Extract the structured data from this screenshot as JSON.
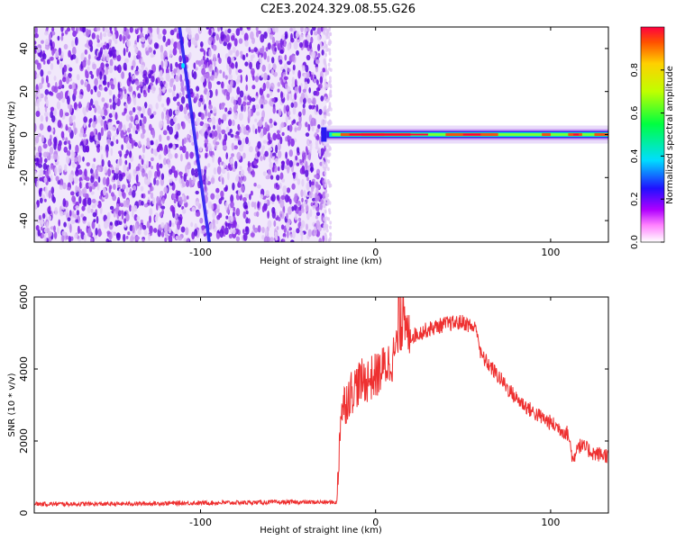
{
  "title": "C2E3.2024.329.08.55.G26",
  "colors": {
    "signal": "#ee3030",
    "trace": "#2a1cf0",
    "frame": "#000000"
  },
  "chart_data": [
    {
      "type": "heatmap",
      "xlabel": "Height of straight line (km)",
      "ylabel": "Frequency (Hz)",
      "xlim": [
        -195,
        133
      ],
      "ylim": [
        -50,
        50
      ],
      "x_ticks": [
        "-100",
        "0",
        "100"
      ],
      "y_ticks": [
        "-40",
        "-20",
        "0",
        "20",
        "40"
      ],
      "colorbar": {
        "label": "Normalized spectral amplitude",
        "range": [
          0,
          1
        ],
        "ticks": [
          "0.0",
          "0.2",
          "0.4",
          "0.6",
          "0.8"
        ]
      },
      "noise_region_x": [
        -195,
        -28
      ],
      "carrier_frequency": 0,
      "carrier_start_x": -28,
      "sweep_trace": {
        "start": [
          -112,
          50
        ],
        "end": [
          -95,
          -50
        ]
      }
    },
    {
      "type": "line",
      "xlabel": "Height of straight line (km)",
      "ylabel": "SNR (10 * v/v)",
      "xlim": [
        -195,
        133
      ],
      "ylim": [
        0,
        6000
      ],
      "x_ticks": [
        "-100",
        "0",
        "100"
      ],
      "y_ticks": [
        "0",
        "2000",
        "4000",
        "6000"
      ],
      "series": [
        {
          "x": [
            -195,
            -150,
            -100,
            -50,
            -22,
            -20,
            -15,
            -10,
            0,
            10,
            15,
            20,
            30,
            40,
            50,
            58,
            60,
            65,
            70,
            80,
            90,
            100,
            110,
            113,
            115,
            120,
            125,
            133
          ],
          "y": [
            250,
            250,
            280,
            300,
            300,
            2800,
            3300,
            3600,
            3800,
            4300,
            5200,
            4900,
            5100,
            5250,
            5300,
            5100,
            4400,
            4100,
            3800,
            3200,
            2800,
            2500,
            2200,
            1400,
            1900,
            1800,
            1650,
            1600
          ]
        }
      ]
    }
  ]
}
